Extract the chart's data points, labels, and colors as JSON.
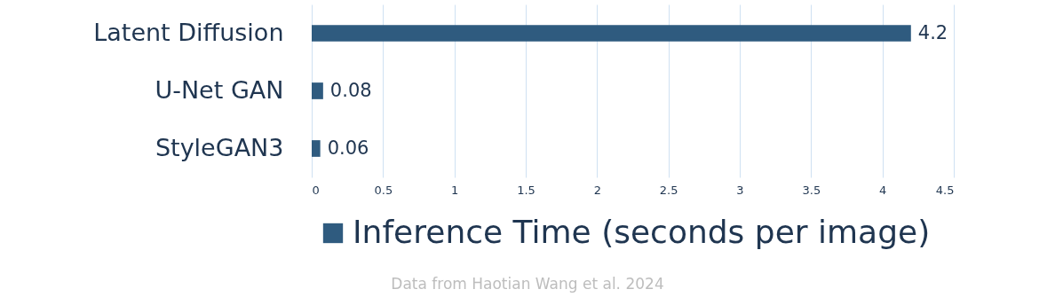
{
  "chart_data": {
    "type": "bar",
    "orientation": "horizontal",
    "categories": [
      "Latent Diffusion",
      "U-Net GAN",
      "StyleGAN3"
    ],
    "series": [
      {
        "name": "Inference Time (seconds per image)",
        "color": "#2f5b7f",
        "values": [
          4.2,
          0.08,
          0.06
        ]
      }
    ],
    "xlim": [
      0,
      4.5
    ],
    "xticks": [
      0,
      0.5,
      1,
      1.5,
      2,
      2.5,
      3,
      3.5,
      4,
      4.5
    ],
    "grid": "x",
    "legend": "bottom",
    "data_labels": true,
    "annotations": [
      "Data from Haotian Wang et al. 2024"
    ]
  }
}
